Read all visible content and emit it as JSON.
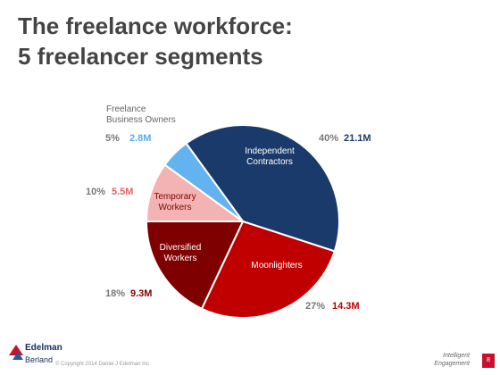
{
  "title": {
    "line1": "The freelance workforce:",
    "line2": "5 freelancer segments"
  },
  "chart_data": {
    "type": "pie",
    "title": "",
    "slices": [
      {
        "name": "Independent Contractors",
        "label_lines": [
          "Independent",
          "Contractors"
        ],
        "percent": 40,
        "percent_label": "40%",
        "value_label": "21.1M",
        "color": "#1a3a6b",
        "value_color": "#1a3a6b"
      },
      {
        "name": "Moonlighters",
        "label_lines": [
          "Moonlighters"
        ],
        "percent": 27,
        "percent_label": "27%",
        "value_label": "14.3M",
        "color": "#c00000",
        "value_color": "#c00000"
      },
      {
        "name": "Diversified Workers",
        "label_lines": [
          "Diversified",
          "Workers"
        ],
        "percent": 18,
        "percent_label": "18%",
        "value_label": "9.3M",
        "color": "#7f0000",
        "value_color": "#7f0000"
      },
      {
        "name": "Temporary Workers",
        "label_lines": [
          "Temporary",
          "Workers"
        ],
        "percent": 10,
        "percent_label": "10%",
        "value_label": "5.5M",
        "color": "#f4b3b3",
        "value_color": "#e06666"
      },
      {
        "name": "Freelance Business Owners",
        "label_lines": [
          "Freelance",
          "Business Owners"
        ],
        "percent": 5,
        "percent_label": "5%",
        "value_label": "2.8M",
        "color": "#63b3f0",
        "value_color": "#5aaee8"
      }
    ]
  },
  "footer": {
    "brand_line1": "Edelman",
    "brand_line2": "Berland",
    "copyright": "© Copyright 2014 Daniel J Edelman Inc",
    "tagline_line1": "Intelligent",
    "tagline_line2": "Engagement",
    "page_number": "8"
  }
}
